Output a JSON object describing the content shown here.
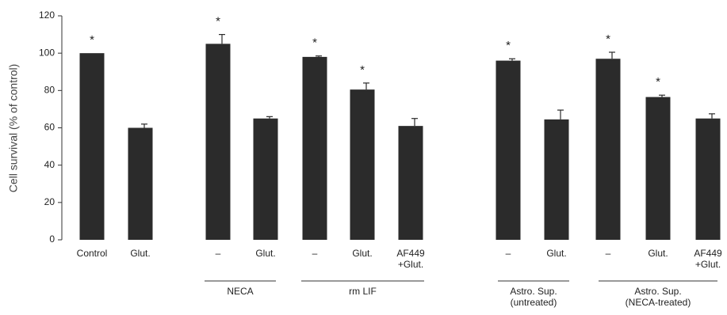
{
  "chart_data": {
    "type": "bar",
    "y_label": "Cell survival (% of control)",
    "categories": [
      [
        "Control"
      ],
      [
        "Glut."
      ],
      [
        "–"
      ],
      [
        "Glut."
      ],
      [
        "–"
      ],
      [
        "Glut."
      ],
      [
        "AF449",
        "+Glut."
      ],
      [
        "–"
      ],
      [
        "Glut."
      ],
      [
        "–"
      ],
      [
        "Glut."
      ],
      [
        "AF449",
        "+Glut."
      ]
    ],
    "values": [
      100,
      60,
      105,
      65,
      98,
      80.5,
      61,
      96,
      64.5,
      97,
      76.5,
      65
    ],
    "errors": [
      null,
      2,
      5,
      1,
      0.5,
      3.5,
      4,
      1,
      5,
      3.5,
      1,
      2.5
    ],
    "markers": [
      "*",
      null,
      "*",
      null,
      "*",
      "*",
      null,
      "*",
      null,
      "*",
      "*",
      null
    ],
    "groups": [
      [
        "NECA"
      ],
      [
        "rm LIF"
      ],
      [
        "Astro. Sup.",
        "(untreated)"
      ],
      [
        "Astro. Sup.",
        "(NECA-treated)"
      ]
    ],
    "color": "#2b2b2b",
    "ylim": [
      0,
      120
    ],
    "yticks": [
      0,
      20,
      40,
      60,
      80,
      100,
      120
    ]
  }
}
